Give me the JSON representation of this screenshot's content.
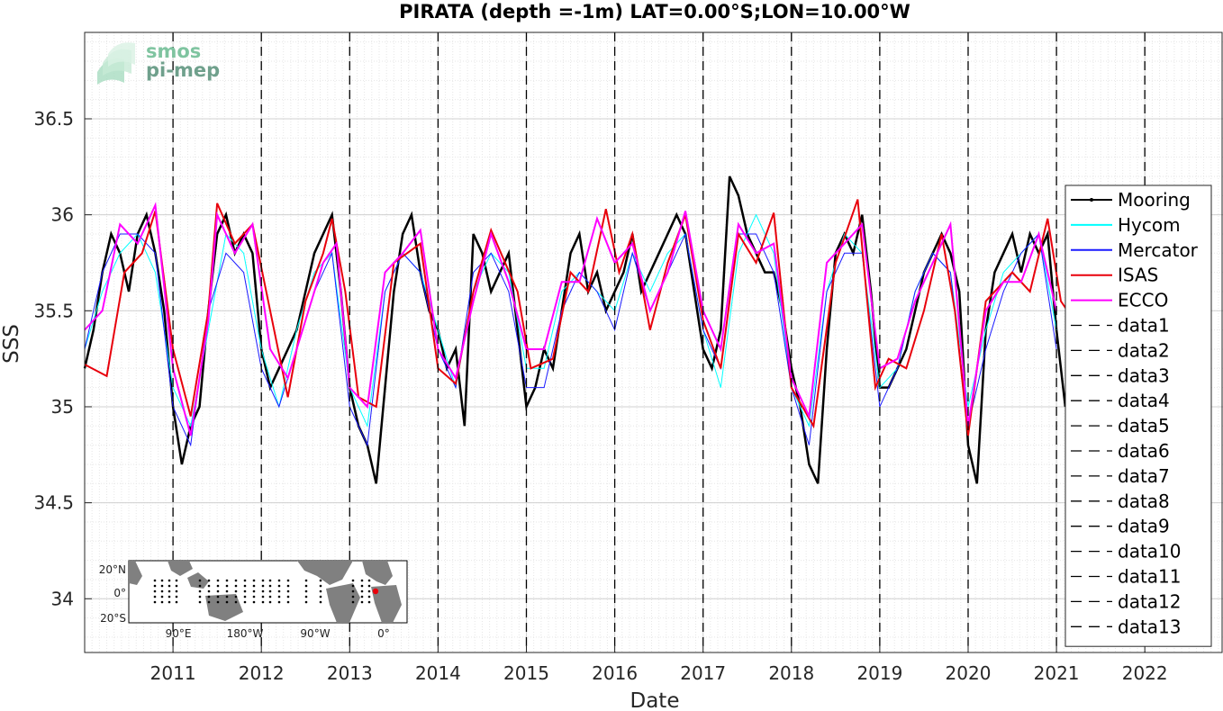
{
  "chart_data": {
    "type": "line",
    "title": "PIRATA (depth =-1m) LAT=0.00°S;LON=10.00°W",
    "xlabel": "Date",
    "ylabel": "SSS",
    "xlim": [
      "2010-01-01",
      "2022-11-20"
    ],
    "ylim": [
      33.72,
      36.95
    ],
    "yticks": [
      34,
      34.5,
      35,
      35.5,
      36,
      36.5
    ],
    "xticks": [
      "2011",
      "2012",
      "2013",
      "2014",
      "2015",
      "2016",
      "2017",
      "2018",
      "2019",
      "2020",
      "2021",
      "2022"
    ],
    "grid": true,
    "legend_position": "right",
    "vertical_lines_years": [
      2011,
      2012,
      2013,
      2014,
      2015,
      2016,
      2017,
      2018,
      2019,
      2020,
      2021,
      2022
    ],
    "series": [
      {
        "name": "Mooring",
        "color": "#000000",
        "x": [
          2010.0,
          2010.1,
          2010.2,
          2010.3,
          2010.4,
          2010.5,
          2010.6,
          2010.7,
          2010.8,
          2010.9,
          2011.0,
          2011.1,
          2011.2,
          2011.3,
          2011.4,
          2011.5,
          2011.6,
          2011.7,
          2011.8,
          2011.9,
          2012.0,
          2012.1,
          2012.2,
          2012.3,
          2012.4,
          2012.5,
          2012.6,
          2012.7,
          2012.8,
          2012.9,
          2013.0,
          2013.1,
          2013.2,
          2013.3,
          2013.4,
          2013.5,
          2013.6,
          2013.7,
          2013.8,
          2013.9,
          2014.0,
          2014.1,
          2014.2,
          2014.3,
          2014.4,
          2014.5,
          2014.6,
          2014.7,
          2014.8,
          2014.9,
          2015.0,
          2015.1,
          2015.2,
          2015.3,
          2015.4,
          2015.5,
          2015.6,
          2015.7,
          2015.8,
          2015.9,
          2016.0,
          2016.1,
          2016.2,
          2016.3,
          2016.4,
          2016.5,
          2016.6,
          2016.7,
          2016.8,
          2016.9,
          2017.0,
          2017.1,
          2017.2,
          2017.3,
          2017.4,
          2017.5,
          2017.6,
          2017.7,
          2017.8,
          2017.9,
          2018.0,
          2018.1,
          2018.2,
          2018.3,
          2018.4,
          2018.5,
          2018.6,
          2018.7,
          2018.8,
          2018.9,
          2019.0,
          2019.1,
          2019.2,
          2019.3,
          2019.4,
          2019.5,
          2019.6,
          2019.7,
          2019.8,
          2019.9,
          2020.0,
          2020.1,
          2020.2,
          2020.3,
          2020.4,
          2020.5,
          2020.6,
          2020.7,
          2020.8,
          2020.9,
          2021.0,
          2021.1
        ],
        "values": [
          35.2,
          35.4,
          35.7,
          35.9,
          35.8,
          35.6,
          35.9,
          36.0,
          35.8,
          35.5,
          35.0,
          34.7,
          34.9,
          35.0,
          35.5,
          35.9,
          36.0,
          35.8,
          35.9,
          35.8,
          35.3,
          35.1,
          35.2,
          35.3,
          35.4,
          35.6,
          35.8,
          35.9,
          36.0,
          35.6,
          35.1,
          34.9,
          34.8,
          34.6,
          35.1,
          35.6,
          35.9,
          36.0,
          35.7,
          35.5,
          35.4,
          35.2,
          35.3,
          34.9,
          35.9,
          35.8,
          35.6,
          35.7,
          35.8,
          35.4,
          35.0,
          35.1,
          35.3,
          35.2,
          35.5,
          35.8,
          35.9,
          35.6,
          35.7,
          35.5,
          35.6,
          35.7,
          35.9,
          35.6,
          35.7,
          35.8,
          35.9,
          36.0,
          35.9,
          35.6,
          35.3,
          35.2,
          35.4,
          36.2,
          36.1,
          35.9,
          35.8,
          35.7,
          35.7,
          35.5,
          35.2,
          35.0,
          34.7,
          34.6,
          35.3,
          35.8,
          35.9,
          35.8,
          36.0,
          35.6,
          35.1,
          35.1,
          35.2,
          35.3,
          35.5,
          35.7,
          35.8,
          35.9,
          35.8,
          35.6,
          34.8,
          34.6,
          35.4,
          35.7,
          35.8,
          35.9,
          35.7,
          35.9,
          35.8,
          35.9,
          35.4,
          35.0
        ]
      },
      {
        "name": "Hycom",
        "color": "#00ffff",
        "x": [
          2010.0,
          2010.2,
          2010.4,
          2010.6,
          2010.8,
          2011.0,
          2011.2,
          2011.4,
          2011.6,
          2011.8,
          2012.0,
          2012.2,
          2012.4,
          2012.6,
          2012.8,
          2013.0,
          2013.2,
          2013.4,
          2013.6,
          2013.8,
          2014.0,
          2014.2,
          2014.4,
          2014.6,
          2014.8,
          2015.0,
          2015.2,
          2015.4,
          2015.6,
          2015.8,
          2016.0,
          2016.2,
          2016.4,
          2016.6,
          2016.8,
          2017.0,
          2017.2,
          2017.4,
          2017.6,
          2017.8,
          2018.0,
          2018.2,
          2018.4,
          2018.6,
          2018.8,
          2019.0,
          2019.2,
          2019.4,
          2019.6,
          2019.8,
          2020.0,
          2020.2,
          2020.4,
          2020.6,
          2020.8,
          2021.0
        ],
        "values": [
          35.3,
          35.6,
          35.8,
          35.9,
          35.7,
          35.1,
          34.9,
          35.4,
          35.9,
          35.8,
          35.3,
          35.0,
          35.4,
          35.7,
          35.8,
          35.1,
          34.9,
          35.6,
          35.8,
          35.7,
          35.4,
          35.1,
          35.6,
          35.8,
          35.7,
          35.2,
          35.2,
          35.6,
          35.7,
          35.6,
          35.5,
          35.8,
          35.6,
          35.8,
          35.9,
          35.4,
          35.1,
          35.8,
          36.0,
          35.8,
          35.1,
          34.9,
          35.6,
          35.9,
          35.8,
          35.1,
          35.2,
          35.6,
          35.8,
          35.7,
          35.0,
          35.4,
          35.7,
          35.8,
          35.9,
          35.4
        ]
      },
      {
        "name": "Mercator",
        "color": "#1a1aff",
        "x": [
          2010.0,
          2010.2,
          2010.4,
          2010.6,
          2010.8,
          2011.0,
          2011.2,
          2011.4,
          2011.6,
          2011.8,
          2012.0,
          2012.2,
          2012.4,
          2012.6,
          2012.8,
          2013.0,
          2013.2,
          2013.4,
          2013.6,
          2013.8,
          2014.0,
          2014.2,
          2014.4,
          2014.6,
          2014.8,
          2015.0,
          2015.2,
          2015.4,
          2015.6,
          2015.8,
          2016.0,
          2016.2,
          2016.4,
          2016.6,
          2016.8,
          2017.0,
          2017.2,
          2017.4,
          2017.6,
          2017.8,
          2018.0,
          2018.2,
          2018.4,
          2018.6,
          2018.8,
          2019.0,
          2019.2,
          2019.4,
          2019.6,
          2019.8,
          2020.0,
          2020.2,
          2020.4,
          2020.6,
          2020.8,
          2021.0
        ],
        "values": [
          35.3,
          35.7,
          35.9,
          35.9,
          35.8,
          35.0,
          34.8,
          35.5,
          35.8,
          35.7,
          35.2,
          35.0,
          35.3,
          35.6,
          35.8,
          35.0,
          34.8,
          35.6,
          35.8,
          35.7,
          35.3,
          35.1,
          35.7,
          35.8,
          35.6,
          35.1,
          35.1,
          35.5,
          35.7,
          35.6,
          35.4,
          35.8,
          35.5,
          35.7,
          35.9,
          35.4,
          35.2,
          35.9,
          35.9,
          35.7,
          35.1,
          34.8,
          35.6,
          35.8,
          35.8,
          35.0,
          35.2,
          35.6,
          35.8,
          35.7,
          34.9,
          35.3,
          35.6,
          35.8,
          35.9,
          35.3
        ]
      },
      {
        "name": "ISAS",
        "color": "#e8000b",
        "x": [
          2010.0,
          2010.25,
          2010.45,
          2010.65,
          2010.8,
          2011.0,
          2011.2,
          2011.4,
          2011.5,
          2011.7,
          2011.9,
          2012.1,
          2012.3,
          2012.5,
          2012.7,
          2012.8,
          2012.95,
          2013.1,
          2013.3,
          2013.5,
          2013.8,
          2014.0,
          2014.2,
          2014.4,
          2014.6,
          2014.9,
          2015.05,
          2015.3,
          2015.5,
          2015.7,
          2015.9,
          2016.05,
          2016.2,
          2016.4,
          2016.6,
          2016.8,
          2017.0,
          2017.2,
          2017.4,
          2017.6,
          2017.8,
          2018.0,
          2018.25,
          2018.5,
          2018.75,
          2018.95,
          2019.1,
          2019.3,
          2019.5,
          2019.7,
          2019.85,
          2020.0,
          2020.2,
          2020.5,
          2020.7,
          2020.9,
          2021.05,
          2021.2
        ],
        "values": [
          35.22,
          35.16,
          35.7,
          35.8,
          36.02,
          35.3,
          34.95,
          35.5,
          36.06,
          35.85,
          35.95,
          35.5,
          35.05,
          35.55,
          35.8,
          35.98,
          35.6,
          35.05,
          35.0,
          35.75,
          35.85,
          35.2,
          35.12,
          35.6,
          35.92,
          35.6,
          35.2,
          35.25,
          35.7,
          35.6,
          36.03,
          35.7,
          35.9,
          35.4,
          35.75,
          36.0,
          35.45,
          35.2,
          35.9,
          35.75,
          36.01,
          35.1,
          34.9,
          35.75,
          36.08,
          35.1,
          35.25,
          35.2,
          35.5,
          35.9,
          35.5,
          34.85,
          35.55,
          35.7,
          35.6,
          35.98,
          35.55,
          35.45
        ]
      },
      {
        "name": "ECCO",
        "color": "#ff00ff",
        "x": [
          2010.0,
          2010.2,
          2010.4,
          2010.6,
          2010.8,
          2011.0,
          2011.2,
          2011.4,
          2011.5,
          2011.7,
          2011.9,
          2012.1,
          2012.3,
          2012.5,
          2012.7,
          2012.85,
          2013.0,
          2013.2,
          2013.4,
          2013.6,
          2013.8,
          2014.0,
          2014.2,
          2014.4,
          2014.6,
          2014.8,
          2015.0,
          2015.2,
          2015.4,
          2015.6,
          2015.8,
          2016.0,
          2016.2,
          2016.4,
          2016.6,
          2016.8,
          2017.0,
          2017.2,
          2017.4,
          2017.6,
          2017.8,
          2018.0,
          2018.2,
          2018.4,
          2018.6,
          2018.8,
          2019.0,
          2019.2,
          2019.4,
          2019.6,
          2019.8,
          2020.0,
          2020.2,
          2020.4,
          2020.6,
          2020.8,
          2021.0
        ],
        "values": [
          35.4,
          35.5,
          35.95,
          35.85,
          36.05,
          35.2,
          34.85,
          35.45,
          36.0,
          35.8,
          35.95,
          35.3,
          35.15,
          35.45,
          35.75,
          35.85,
          35.1,
          35.0,
          35.7,
          35.8,
          35.92,
          35.3,
          35.15,
          35.55,
          35.9,
          35.65,
          35.3,
          35.3,
          35.65,
          35.65,
          35.98,
          35.75,
          35.85,
          35.5,
          35.7,
          36.02,
          35.5,
          35.3,
          35.95,
          35.8,
          35.85,
          35.15,
          34.95,
          35.75,
          35.85,
          35.95,
          35.2,
          35.25,
          35.55,
          35.75,
          35.95,
          34.9,
          35.5,
          35.65,
          35.65,
          35.9,
          35.5
        ]
      }
    ],
    "legend": [
      "Mooring",
      "Hycom",
      "Mercator",
      "ISAS",
      "ECCO",
      "data1",
      "data2",
      "data3",
      "data4",
      "data5",
      "data6",
      "data7",
      "data8",
      "data9",
      "data10",
      "data11",
      "data12",
      "data13"
    ]
  },
  "logo": {
    "line1": "smos",
    "line2": "pi-mep"
  },
  "inset_map": {
    "ylabels": [
      "20°N",
      "0°",
      "20°S"
    ],
    "xlabels": [
      "90°E",
      "180°W",
      "90°W",
      "0°"
    ],
    "land_color": "#808080",
    "marker_color": "#e8000b"
  }
}
